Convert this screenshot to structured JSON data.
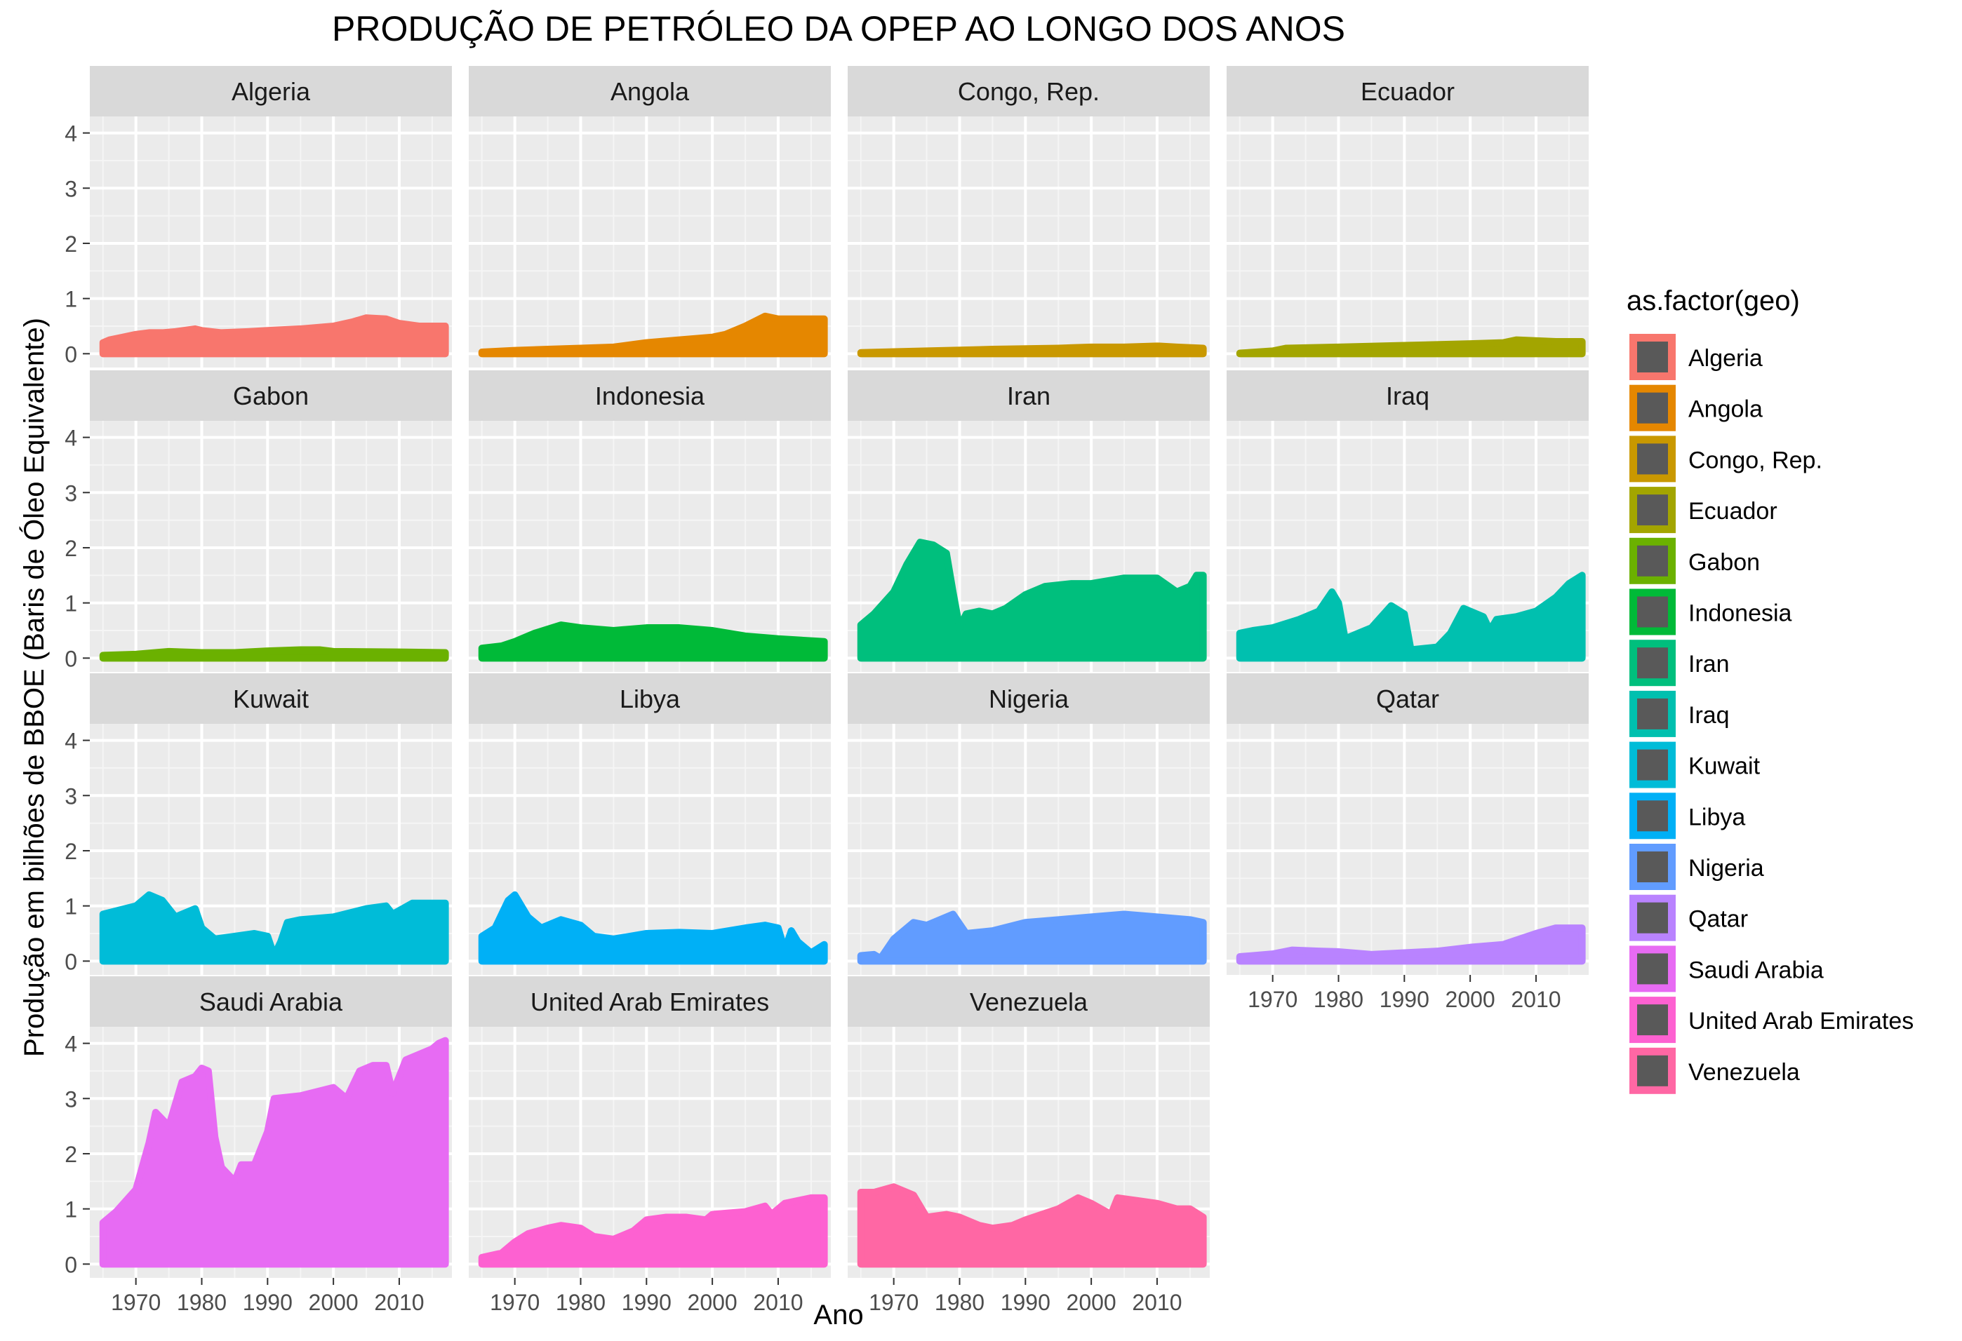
{
  "chart_data": {
    "type": "area",
    "title": "PRODUÇÃO DE PETRÓLEO DA OPEP AO LONGO DOS ANOS",
    "xlabel": "Ano",
    "ylabel": "Produção em bilhões de BBOE (Baris de Óleo Equivalente)",
    "xlim": [
      1963,
      2018
    ],
    "ylim": [
      -0.25,
      4.3
    ],
    "x_ticks": [
      1970,
      1980,
      1990,
      2000,
      2010
    ],
    "y_ticks": [
      0,
      1,
      2,
      3,
      4
    ],
    "grid": true,
    "facets": "wrap-4-columns",
    "legend": {
      "title": "as.factor(geo)",
      "position": "right"
    },
    "series": [
      {
        "name": "Algeria",
        "color": "#F8766D",
        "points": [
          [
            1965,
            0.2
          ],
          [
            1966,
            0.25
          ],
          [
            1968,
            0.3
          ],
          [
            1970,
            0.35
          ],
          [
            1972,
            0.38
          ],
          [
            1974,
            0.38
          ],
          [
            1976,
            0.4
          ],
          [
            1979,
            0.45
          ],
          [
            1980,
            0.42
          ],
          [
            1983,
            0.38
          ],
          [
            1987,
            0.4
          ],
          [
            1990,
            0.42
          ],
          [
            1995,
            0.45
          ],
          [
            2000,
            0.5
          ],
          [
            2003,
            0.58
          ],
          [
            2005,
            0.65
          ],
          [
            2008,
            0.63
          ],
          [
            2010,
            0.55
          ],
          [
            2013,
            0.5
          ],
          [
            2017,
            0.5
          ]
        ]
      },
      {
        "name": "Angola",
        "color": "#E58700",
        "points": [
          [
            1965,
            0.03
          ],
          [
            1970,
            0.06
          ],
          [
            1975,
            0.08
          ],
          [
            1980,
            0.1
          ],
          [
            1985,
            0.12
          ],
          [
            1990,
            0.2
          ],
          [
            1995,
            0.25
          ],
          [
            2000,
            0.3
          ],
          [
            2002,
            0.35
          ],
          [
            2005,
            0.5
          ],
          [
            2008,
            0.68
          ],
          [
            2010,
            0.63
          ],
          [
            2013,
            0.63
          ],
          [
            2017,
            0.63
          ]
        ]
      },
      {
        "name": "Congo, Rep.",
        "color": "#C99800",
        "points": [
          [
            1965,
            0.02
          ],
          [
            1975,
            0.05
          ],
          [
            1985,
            0.08
          ],
          [
            1995,
            0.1
          ],
          [
            2000,
            0.12
          ],
          [
            2005,
            0.12
          ],
          [
            2010,
            0.14
          ],
          [
            2013,
            0.12
          ],
          [
            2017,
            0.1
          ]
        ]
      },
      {
        "name": "Ecuador",
        "color": "#A3A500",
        "points": [
          [
            1965,
            0.01
          ],
          [
            1970,
            0.05
          ],
          [
            1972,
            0.1
          ],
          [
            1980,
            0.12
          ],
          [
            1990,
            0.15
          ],
          [
            2000,
            0.18
          ],
          [
            2005,
            0.2
          ],
          [
            2007,
            0.25
          ],
          [
            2013,
            0.22
          ],
          [
            2017,
            0.22
          ]
        ]
      },
      {
        "name": "Gabon",
        "color": "#6BB100",
        "points": [
          [
            1965,
            0.05
          ],
          [
            1970,
            0.07
          ],
          [
            1975,
            0.12
          ],
          [
            1980,
            0.1
          ],
          [
            1985,
            0.1
          ],
          [
            1990,
            0.13
          ],
          [
            1995,
            0.15
          ],
          [
            1998,
            0.15
          ],
          [
            2000,
            0.12
          ],
          [
            2010,
            0.11
          ],
          [
            2017,
            0.1
          ]
        ]
      },
      {
        "name": "Indonesia",
        "color": "#00BA38",
        "points": [
          [
            1965,
            0.18
          ],
          [
            1968,
            0.22
          ],
          [
            1970,
            0.3
          ],
          [
            1973,
            0.45
          ],
          [
            1977,
            0.6
          ],
          [
            1980,
            0.55
          ],
          [
            1985,
            0.5
          ],
          [
            1990,
            0.55
          ],
          [
            1995,
            0.55
          ],
          [
            2000,
            0.5
          ],
          [
            2005,
            0.4
          ],
          [
            2010,
            0.35
          ],
          [
            2017,
            0.3
          ]
        ]
      },
      {
        "name": "Iran",
        "color": "#00BF7D",
        "points": [
          [
            1965,
            0.6
          ],
          [
            1967,
            0.8
          ],
          [
            1970,
            1.2
          ],
          [
            1972,
            1.7
          ],
          [
            1974,
            2.1
          ],
          [
            1976,
            2.05
          ],
          [
            1978,
            1.9
          ],
          [
            1979,
            1.2
          ],
          [
            1980,
            0.55
          ],
          [
            1981,
            0.8
          ],
          [
            1983,
            0.85
          ],
          [
            1985,
            0.8
          ],
          [
            1987,
            0.9
          ],
          [
            1990,
            1.15
          ],
          [
            1993,
            1.3
          ],
          [
            1997,
            1.35
          ],
          [
            2000,
            1.35
          ],
          [
            2005,
            1.45
          ],
          [
            2010,
            1.45
          ],
          [
            2013,
            1.2
          ],
          [
            2015,
            1.3
          ],
          [
            2016,
            1.5
          ],
          [
            2017,
            1.5
          ]
        ]
      },
      {
        "name": "Iraq",
        "color": "#00C0AF",
        "points": [
          [
            1965,
            0.45
          ],
          [
            1967,
            0.5
          ],
          [
            1970,
            0.55
          ],
          [
            1974,
            0.7
          ],
          [
            1977,
            0.85
          ],
          [
            1979,
            1.2
          ],
          [
            1980,
            1.0
          ],
          [
            1981,
            0.35
          ],
          [
            1983,
            0.45
          ],
          [
            1985,
            0.55
          ],
          [
            1988,
            0.95
          ],
          [
            1990,
            0.8
          ],
          [
            1991,
            0.15
          ],
          [
            1995,
            0.2
          ],
          [
            1997,
            0.45
          ],
          [
            1999,
            0.9
          ],
          [
            2002,
            0.75
          ],
          [
            2003,
            0.5
          ],
          [
            2004,
            0.7
          ],
          [
            2007,
            0.75
          ],
          [
            2010,
            0.85
          ],
          [
            2013,
            1.1
          ],
          [
            2015,
            1.35
          ],
          [
            2017,
            1.5
          ]
        ]
      },
      {
        "name": "Kuwait",
        "color": "#00BCD8",
        "points": [
          [
            1965,
            0.85
          ],
          [
            1970,
            1.0
          ],
          [
            1972,
            1.2
          ],
          [
            1974,
            1.1
          ],
          [
            1976,
            0.8
          ],
          [
            1979,
            0.95
          ],
          [
            1980,
            0.6
          ],
          [
            1982,
            0.4
          ],
          [
            1985,
            0.45
          ],
          [
            1988,
            0.5
          ],
          [
            1990,
            0.45
          ],
          [
            1991,
            0.1
          ],
          [
            1992,
            0.35
          ],
          [
            1993,
            0.7
          ],
          [
            1995,
            0.75
          ],
          [
            2000,
            0.8
          ],
          [
            2005,
            0.95
          ],
          [
            2008,
            1.0
          ],
          [
            2009,
            0.85
          ],
          [
            2012,
            1.05
          ],
          [
            2017,
            1.05
          ]
        ]
      },
      {
        "name": "Libya",
        "color": "#00B0F6",
        "points": [
          [
            1965,
            0.45
          ],
          [
            1967,
            0.6
          ],
          [
            1969,
            1.1
          ],
          [
            1970,
            1.2
          ],
          [
            1972,
            0.8
          ],
          [
            1974,
            0.6
          ],
          [
            1977,
            0.75
          ],
          [
            1980,
            0.65
          ],
          [
            1982,
            0.45
          ],
          [
            1985,
            0.4
          ],
          [
            1990,
            0.5
          ],
          [
            1995,
            0.52
          ],
          [
            2000,
            0.5
          ],
          [
            2005,
            0.6
          ],
          [
            2008,
            0.65
          ],
          [
            2010,
            0.6
          ],
          [
            2011,
            0.2
          ],
          [
            2012,
            0.55
          ],
          [
            2013,
            0.35
          ],
          [
            2015,
            0.15
          ],
          [
            2017,
            0.3
          ]
        ]
      },
      {
        "name": "Nigeria",
        "color": "#619CFF",
        "points": [
          [
            1965,
            0.1
          ],
          [
            1967,
            0.12
          ],
          [
            1968,
            0.05
          ],
          [
            1970,
            0.4
          ],
          [
            1973,
            0.7
          ],
          [
            1975,
            0.65
          ],
          [
            1979,
            0.85
          ],
          [
            1981,
            0.5
          ],
          [
            1985,
            0.55
          ],
          [
            1990,
            0.7
          ],
          [
            1995,
            0.75
          ],
          [
            2000,
            0.8
          ],
          [
            2005,
            0.85
          ],
          [
            2010,
            0.8
          ],
          [
            2015,
            0.75
          ],
          [
            2017,
            0.7
          ]
        ]
      },
      {
        "name": "Qatar",
        "color": "#B983FF",
        "points": [
          [
            1965,
            0.08
          ],
          [
            1970,
            0.13
          ],
          [
            1973,
            0.2
          ],
          [
            1977,
            0.18
          ],
          [
            1980,
            0.17
          ],
          [
            1985,
            0.12
          ],
          [
            1990,
            0.15
          ],
          [
            1995,
            0.18
          ],
          [
            2000,
            0.25
          ],
          [
            2005,
            0.3
          ],
          [
            2010,
            0.5
          ],
          [
            2013,
            0.6
          ],
          [
            2017,
            0.6
          ]
        ]
      },
      {
        "name": "Saudi Arabia",
        "color": "#E76BF3",
        "points": [
          [
            1965,
            0.75
          ],
          [
            1967,
            0.95
          ],
          [
            1970,
            1.35
          ],
          [
            1972,
            2.2
          ],
          [
            1973,
            2.75
          ],
          [
            1975,
            2.5
          ],
          [
            1977,
            3.3
          ],
          [
            1979,
            3.4
          ],
          [
            1980,
            3.55
          ],
          [
            1981,
            3.5
          ],
          [
            1982,
            2.3
          ],
          [
            1983,
            1.75
          ],
          [
            1985,
            1.5
          ],
          [
            1986,
            1.8
          ],
          [
            1988,
            1.8
          ],
          [
            1990,
            2.4
          ],
          [
            1991,
            3.0
          ],
          [
            1995,
            3.05
          ],
          [
            2000,
            3.2
          ],
          [
            2002,
            3.0
          ],
          [
            2004,
            3.5
          ],
          [
            2006,
            3.6
          ],
          [
            2008,
            3.6
          ],
          [
            2009,
            3.1
          ],
          [
            2011,
            3.7
          ],
          [
            2013,
            3.8
          ],
          [
            2015,
            3.9
          ],
          [
            2016,
            4.0
          ],
          [
            2017,
            4.05
          ]
        ]
      },
      {
        "name": "United Arab Emirates",
        "color": "#FD61D1",
        "points": [
          [
            1965,
            0.12
          ],
          [
            1968,
            0.2
          ],
          [
            1970,
            0.4
          ],
          [
            1972,
            0.55
          ],
          [
            1975,
            0.65
          ],
          [
            1977,
            0.7
          ],
          [
            1980,
            0.65
          ],
          [
            1982,
            0.5
          ],
          [
            1985,
            0.45
          ],
          [
            1988,
            0.6
          ],
          [
            1990,
            0.8
          ],
          [
            1993,
            0.85
          ],
          [
            1996,
            0.85
          ],
          [
            1999,
            0.8
          ],
          [
            2000,
            0.9
          ],
          [
            2005,
            0.95
          ],
          [
            2008,
            1.05
          ],
          [
            2009,
            0.9
          ],
          [
            2011,
            1.1
          ],
          [
            2015,
            1.2
          ],
          [
            2017,
            1.2
          ]
        ]
      },
      {
        "name": "Venezuela",
        "color": "#FF67A4",
        "points": [
          [
            1965,
            1.3
          ],
          [
            1967,
            1.3
          ],
          [
            1970,
            1.4
          ],
          [
            1973,
            1.25
          ],
          [
            1975,
            0.85
          ],
          [
            1978,
            0.9
          ],
          [
            1980,
            0.85
          ],
          [
            1983,
            0.7
          ],
          [
            1985,
            0.65
          ],
          [
            1988,
            0.7
          ],
          [
            1990,
            0.8
          ],
          [
            1995,
            1.0
          ],
          [
            1998,
            1.2
          ],
          [
            2000,
            1.1
          ],
          [
            2003,
            0.9
          ],
          [
            2004,
            1.2
          ],
          [
            2007,
            1.15
          ],
          [
            2010,
            1.1
          ],
          [
            2013,
            1.0
          ],
          [
            2015,
            1.0
          ],
          [
            2017,
            0.85
          ]
        ]
      }
    ]
  }
}
